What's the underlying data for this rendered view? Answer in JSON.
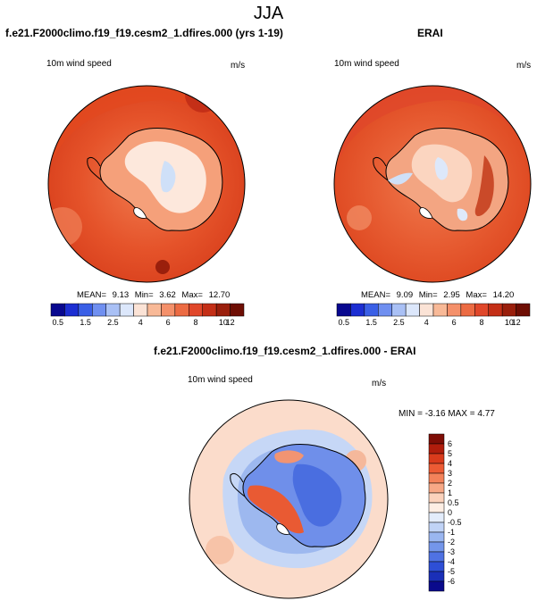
{
  "figure_title": "JJA",
  "panels": [
    {
      "title": "f.e21.F2000climo.f19_f19.cesm2_1.dfires.000 (yrs 1-19)",
      "variable": "10m wind speed",
      "units": "m/s",
      "mean_label": "MEAN=",
      "mean": "9.13",
      "min_label": "Min=",
      "min": "3.62",
      "max_label": "Max=",
      "max": "12.70"
    },
    {
      "title": "ERAI",
      "variable": "10m wind speed",
      "units": "m/s",
      "mean_label": "MEAN=",
      "mean": "9.09",
      "min_label": "Min=",
      "min": "2.95",
      "max_label": "Max=",
      "max": "14.20"
    },
    {
      "title": "f.e21.F2000climo.f19_f19.cesm2_1.dfires.000 - ERAI",
      "variable": "10m wind speed",
      "units": "m/s",
      "minmax_text": "MIN =  -3.16 MAX =  4.77"
    }
  ],
  "colorbar_abs": {
    "labels": [
      "0.5",
      "1.5",
      "2.5",
      "4",
      "6",
      "8",
      "10",
      "12"
    ],
    "colors": [
      "#08088f",
      "#1c2ed2",
      "#3a5fe6",
      "#6f8ff0",
      "#a9c0f5",
      "#dce7fb",
      "#fbe3d6",
      "#f8b997",
      "#f4906a",
      "#ec6b43",
      "#e0472a",
      "#c42f17",
      "#9a1f0c",
      "#6e0e04"
    ]
  },
  "colorbar_diff": {
    "labels": [
      "6",
      "5",
      "4",
      "3",
      "2",
      "1",
      "0.5",
      "0",
      "-0.5",
      "-1",
      "-2",
      "-3",
      "-4",
      "-5",
      "-6"
    ],
    "colors": [
      "#7e0d05",
      "#b01d0c",
      "#d93b1c",
      "#ec5b34",
      "#f3825a",
      "#f7a886",
      "#fbd2bc",
      "#fdeee4",
      "#e3ecfb",
      "#c0d3f6",
      "#9ab6f0",
      "#7496ea",
      "#4f72e3",
      "#2e4fd6",
      "#1a2fb8",
      "#0a0a8c"
    ]
  },
  "colors": {
    "land_line": "#000000",
    "ocean_abs": "#e2481f",
    "ocean_diff": "#fbdccb"
  }
}
